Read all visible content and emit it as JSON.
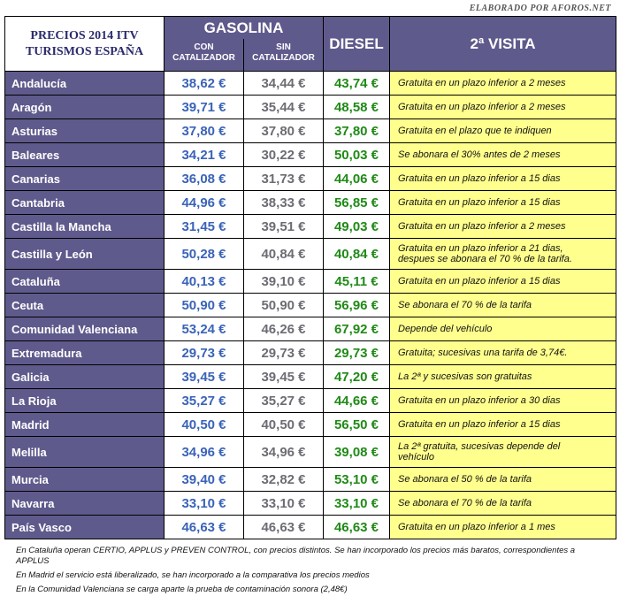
{
  "credit": "ELABORADO POR AFOROS.NET",
  "header": {
    "title_line1": "PRECIOS 2014  ITV",
    "title_line2": "TURISMOS ESPAÑA",
    "gasolina": "GASOLINA",
    "con_line1": "CON",
    "con_line2": "CATALIZADOR",
    "sin_line1": "SIN",
    "sin_line2": "CATALIZADOR",
    "diesel": "DIESEL",
    "visita": "2ª VISITA"
  },
  "rows": [
    {
      "region": "Andalucía",
      "con": "38,62 €",
      "sin": "34,44 €",
      "diesel": "43,74 €",
      "visita": "Gratuita en un plazo inferior a 2 meses",
      "visita2": ""
    },
    {
      "region": "Aragón",
      "con": "39,71 €",
      "sin": "35,44 €",
      "diesel": "48,58 €",
      "visita": "Gratuita en un plazo inferior a 2 meses",
      "visita2": ""
    },
    {
      "region": "Asturias",
      "con": "37,80 €",
      "sin": "37,80 €",
      "diesel": "37,80 €",
      "visita": "Gratuita en el plazo que te indiquen",
      "visita2": ""
    },
    {
      "region": "Baleares",
      "con": "34,21 €",
      "sin": "30,22 €",
      "diesel": "50,03 €",
      "visita": "Se abonara el 30% antes de 2 meses",
      "visita2": ""
    },
    {
      "region": "Canarias",
      "con": "36,08 €",
      "sin": "31,73 €",
      "diesel": "44,06 €",
      "visita": "Gratuita en un plazo inferior a 15 dias",
      "visita2": ""
    },
    {
      "region": "Cantabria",
      "con": "44,96 €",
      "sin": "38,33 €",
      "diesel": "56,85 €",
      "visita": "Gratuita en un plazo inferior a 15 dias",
      "visita2": ""
    },
    {
      "region": "Castilla la Mancha",
      "con": "31,45 €",
      "sin": "39,51 €",
      "diesel": "49,03 €",
      "visita": "Gratuita en un plazo inferior a 2 meses",
      "visita2": ""
    },
    {
      "region": "Castilla y León",
      "con": "50,28 €",
      "sin": "40,84 €",
      "diesel": "40,84 €",
      "visita": "Gratuita en un plazo inferior a 21 dias,",
      "visita2": "despues se abonara el 70 % de la tarifa."
    },
    {
      "region": "Cataluña",
      "con": "40,13 €",
      "sin": "39,10 €",
      "diesel": "45,11 €",
      "visita": "Gratuita en un plazo inferior a 15 dias",
      "visita2": ""
    },
    {
      "region": "Ceuta",
      "con": "50,90 €",
      "sin": "50,90 €",
      "diesel": "56,96 €",
      "visita": "Se abonara el 70 % de la tarifa",
      "visita2": ""
    },
    {
      "region": "Comunidad Valenciana",
      "con": "53,24 €",
      "sin": "46,26 €",
      "diesel": "67,92 €",
      "visita": "Depende del vehículo",
      "visita2": ""
    },
    {
      "region": "Extremadura",
      "con": "29,73 €",
      "sin": "29,73 €",
      "diesel": "29,73 €",
      "visita": "Gratuita; sucesivas una tarifa de 3,74€.",
      "visita2": ""
    },
    {
      "region": "Galicia",
      "con": "39,45 €",
      "sin": "39,45 €",
      "diesel": "47,20 €",
      "visita": "La 2ª y sucesivas son gratuitas",
      "visita2": ""
    },
    {
      "region": "La Rioja",
      "con": "35,27 €",
      "sin": "35,27 €",
      "diesel": "44,66 €",
      "visita": "Gratuita en un plazo inferior a 30 dias",
      "visita2": ""
    },
    {
      "region": "Madrid",
      "con": "40,50 €",
      "sin": "40,50 €",
      "diesel": "56,50 €",
      "visita": "Gratuita en un plazo inferior a 15 dias",
      "visita2": ""
    },
    {
      "region": "Melilla",
      "con": "34,96 €",
      "sin": "34,96 €",
      "diesel": "39,08 €",
      "visita": "La 2ª gratuita, sucesivas depende del",
      "visita2": "vehículo"
    },
    {
      "region": "Murcia",
      "con": "39,40 €",
      "sin": "32,82 €",
      "diesel": "53,10 €",
      "visita": "Se abonara el 50 % de la tarifa",
      "visita2": ""
    },
    {
      "region": "Navarra",
      "con": "33,10 €",
      "sin": "33,10 €",
      "diesel": "33,10 €",
      "visita": "Se abonara el 70 % de la tarifa",
      "visita2": ""
    },
    {
      "region": "País Vasco",
      "con": "46,63 €",
      "sin": "46,63 €",
      "diesel": "46,63 €",
      "visita": "Gratuita en un plazo inferior a 1 mes",
      "visita2": ""
    }
  ],
  "notes": [
    "En Cataluña operan CERTIO, APPLUS y PREVEN CONTROL, con precios distintos. Se han incorporado los precios más baratos, correspondientes a APPLUS",
    "En Madrid el servicio está liberalizado, se han incorporado a la comparativa los precios medios",
    "En la Comunidad Valenciana se carga aparte la prueba de contaminación sonora (2,48€)"
  ]
}
